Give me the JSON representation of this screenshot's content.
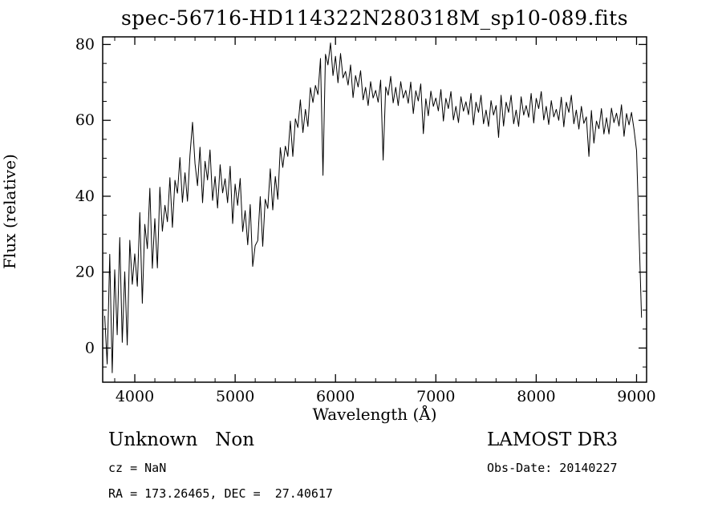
{
  "chart_data": {
    "type": "line",
    "title": "spec-56716-HD114322N280318M_sp10-089.fits",
    "xlabel": "Wavelength (Å)",
    "ylabel": "Flux (relative)",
    "xlim": [
      3680,
      9100
    ],
    "ylim": [
      -9,
      82
    ],
    "xticks": [
      4000,
      5000,
      6000,
      7000,
      8000,
      9000
    ],
    "yticks": [
      0,
      20,
      40,
      60,
      80
    ],
    "x_minor_step": 200,
    "y_minor_step": 5,
    "grid": false,
    "legend": "none",
    "line_color": "#000000",
    "series": [
      {
        "name": "spectrum",
        "x_start": 3700,
        "x_step": 25,
        "flux": [
          8.5,
          -4.2,
          24.7,
          -6.5,
          20.6,
          3.5,
          29.1,
          1.5,
          20.1,
          0.8,
          28.4,
          16.8,
          24.8,
          16.3,
          35.7,
          11.8,
          32.6,
          26.2,
          42.1,
          21.0,
          34.1,
          21.1,
          42.4,
          30.8,
          37.6,
          33.3,
          44.9,
          31.8,
          44.2,
          40.8,
          50.2,
          38.4,
          46.2,
          38.7,
          50.8,
          59.5,
          48.6,
          42.8,
          52.9,
          38.3,
          49.2,
          44.3,
          52.2,
          38.9,
          45.2,
          36.9,
          48.3,
          40.9,
          44.6,
          38.3,
          47.9,
          32.8,
          43.2,
          37.6,
          44.7,
          30.7,
          36.2,
          27.2,
          37.8,
          21.5,
          27.0,
          28.3,
          39.9,
          26.8,
          39.2,
          36.8,
          47.2,
          36.4,
          45.2,
          39.2,
          52.8,
          47.6,
          53.2,
          50.5,
          59.8,
          50.5,
          60.4,
          58.1,
          65.4,
          56.8,
          62.9,
          58.4,
          68.6,
          64.7,
          69.2,
          66.8,
          76.3,
          45.5,
          77.4,
          74.6,
          80.4,
          71.8,
          76.9,
          69.9,
          77.6,
          71.2,
          72.9,
          69.3,
          74.6,
          66.0,
          71.8,
          68.8,
          73.1,
          65.4,
          68.7,
          63.9,
          70.2,
          65.9,
          67.9,
          64.8,
          70.6,
          49.5,
          68.8,
          66.6,
          71.6,
          64.6,
          68.7,
          63.9,
          70.2,
          65.9,
          67.9,
          64.5,
          70.1,
          61.8,
          67.8,
          65.1,
          69.6,
          56.5,
          65.7,
          61.2,
          67.7,
          63.7,
          65.9,
          62.5,
          68.1,
          59.8,
          65.8,
          63.1,
          67.6,
          60.1,
          63.7,
          59.4,
          66.2,
          62.4,
          64.9,
          61.5,
          67.1,
          58.8,
          64.8,
          62.1,
          66.6,
          59.1,
          62.7,
          58.4,
          65.2,
          61.4,
          63.9,
          55.5,
          66.6,
          58.5,
          64.8,
          62.1,
          66.6,
          59.1,
          62.7,
          58.4,
          66.2,
          61.4,
          63.9,
          60.8,
          67.1,
          59.3,
          65.8,
          63.1,
          67.6,
          60.1,
          63.7,
          58.9,
          65.2,
          60.9,
          62.9,
          60.0,
          66.1,
          58.3,
          64.8,
          62.1,
          66.6,
          59.1,
          62.7,
          57.7,
          63.7,
          59.2,
          60.9,
          50.5,
          62.6,
          54.0,
          59.8,
          57.8,
          63.1,
          56.4,
          60.7,
          56.4,
          63.2,
          59.4,
          61.9,
          58.5,
          64.1,
          55.8,
          61.8,
          58.8,
          62.1,
          57.5,
          52.0,
          30.0,
          8.0
        ]
      }
    ]
  },
  "annotations": {
    "object_class": "Unknown   Non",
    "cz": "cz = NaN",
    "ra_dec": "RA = 173.26465, DEC =  27.40617",
    "survey": "LAMOST DR3",
    "obs_date": "Obs-Date: 20140227"
  }
}
